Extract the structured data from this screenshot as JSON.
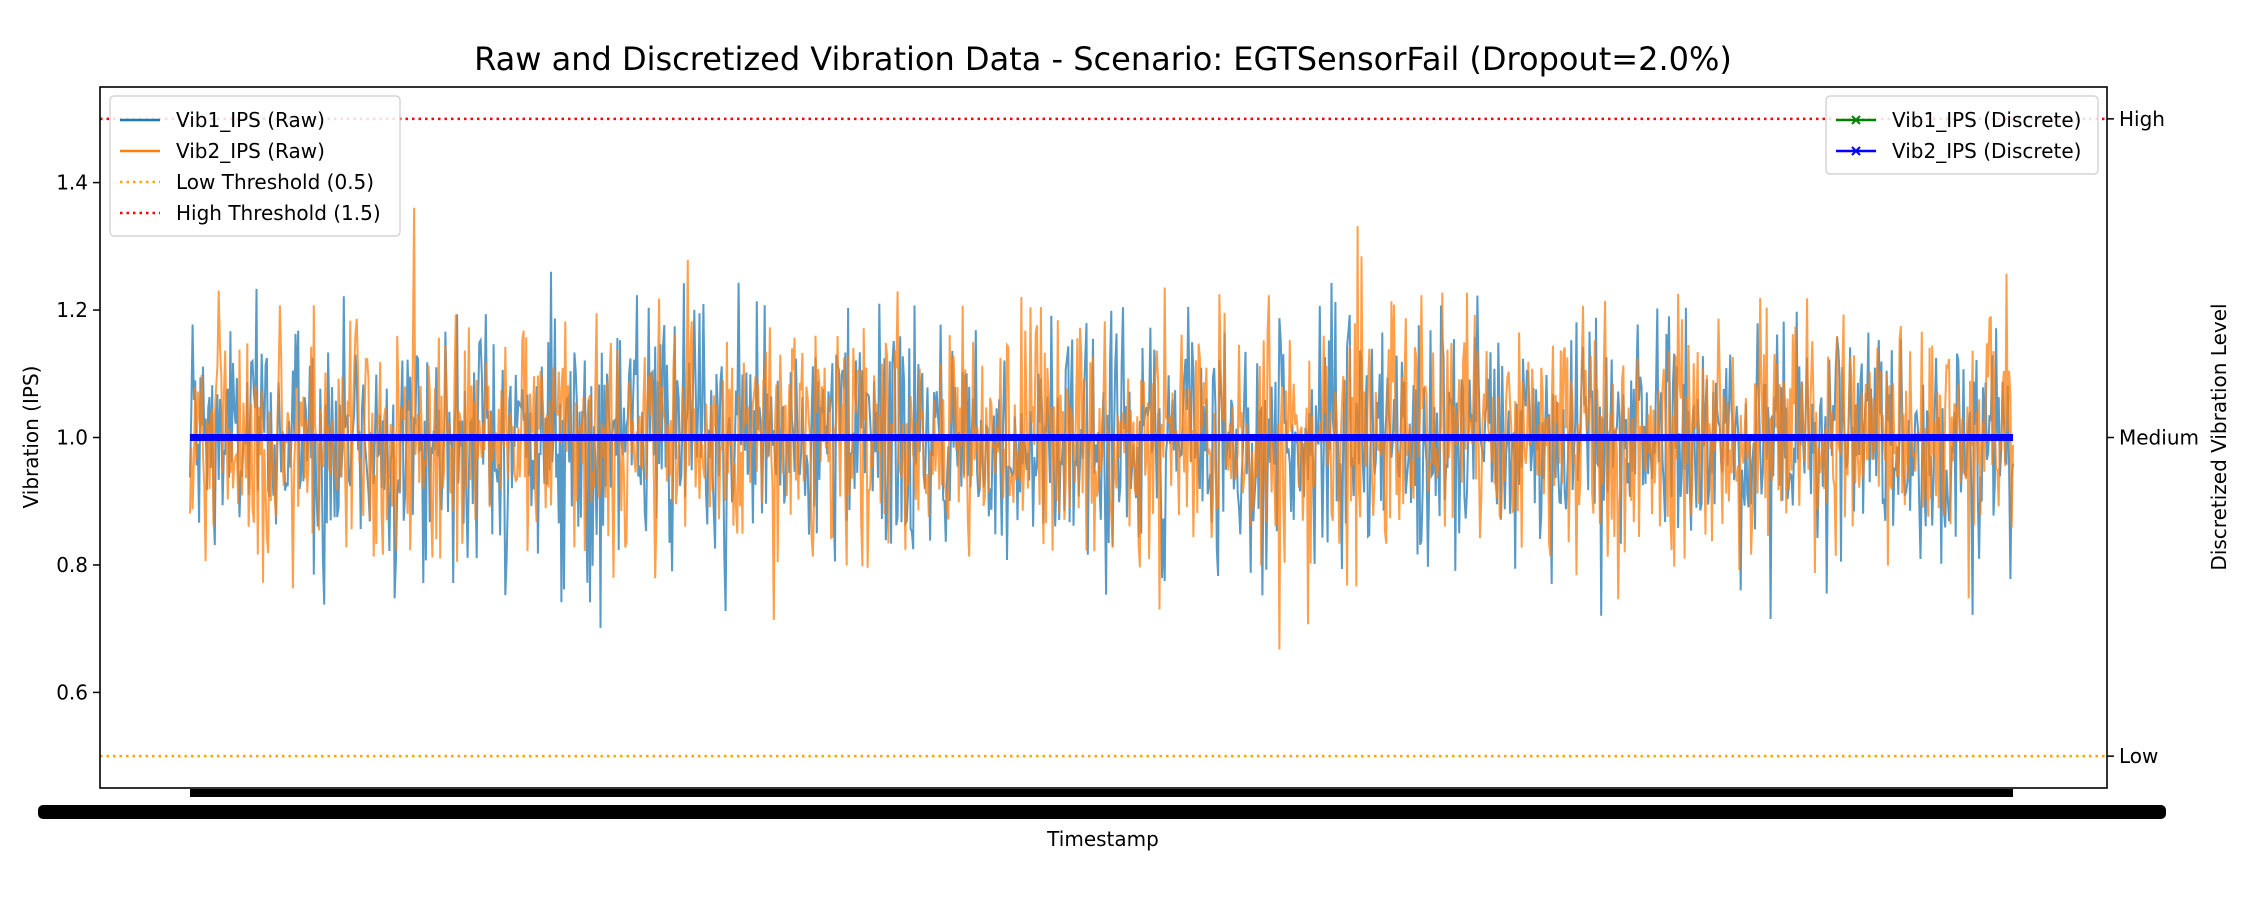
{
  "chart_data": {
    "type": "line",
    "title": "Raw and Discretized Vibration Data - Scenario: EGTSensorFail (Dropout=2.0%)",
    "xlabel": "Timestamp",
    "ylabel": "Vibration (IPS)",
    "ylabel_right": "Discretized Vibration Level",
    "ylim": [
      0.45,
      1.55
    ],
    "yticks": [
      0.6,
      0.8,
      1.0,
      1.2,
      1.4
    ],
    "ytick_labels": [
      "0.6",
      "0.8",
      "1.0",
      "1.2",
      "1.4"
    ],
    "right_ticks": [
      {
        "value": 0.5,
        "label": "Low"
      },
      {
        "value": 1.0,
        "label": "Medium"
      },
      {
        "value": 1.5,
        "label": "High"
      }
    ],
    "grid": false,
    "legend_left": "top-left",
    "legend_right": "top-right",
    "colors": {
      "vib1_raw": "#1f77b4",
      "vib2_raw": "#ff7f0e",
      "low_threshold": "#ffa500",
      "high_threshold": "#ff0000",
      "vib1_discrete": "#008000",
      "vib2_discrete": "#0000ff"
    },
    "series": [
      {
        "name": "Vib1_IPS (Raw)",
        "style": "line",
        "mean": 1.0,
        "std": 0.1,
        "range": [
          0.62,
          1.37
        ]
      },
      {
        "name": "Vib2_IPS (Raw)",
        "style": "line",
        "mean": 1.0,
        "std": 0.1,
        "range": [
          0.61,
          1.39
        ]
      },
      {
        "name": "Low Threshold (0.5)",
        "style": "dotted",
        "value": 0.5
      },
      {
        "name": "High Threshold (1.5)",
        "style": "dotted",
        "value": 1.5
      },
      {
        "name": "Vib1_IPS (Discrete)",
        "style": "line-marker-x",
        "value": 1.0,
        "level": "Medium"
      },
      {
        "name": "Vib2_IPS (Discrete)",
        "style": "line-marker-x",
        "value": 1.0,
        "level": "Medium"
      }
    ]
  }
}
